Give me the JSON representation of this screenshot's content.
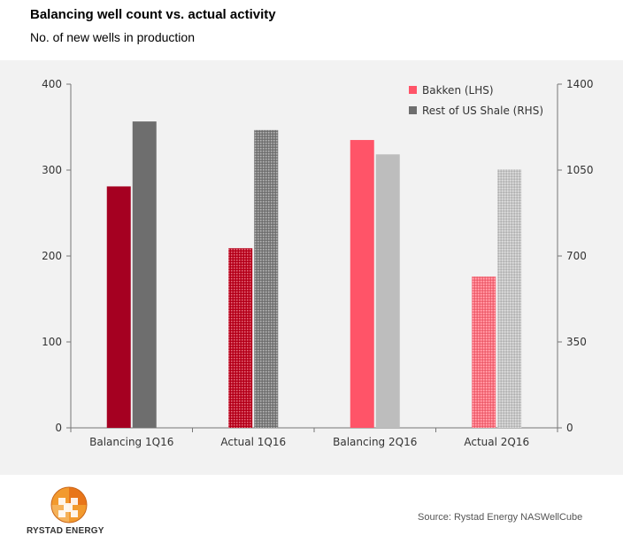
{
  "title": "Balancing well count vs. actual activity",
  "subtitle": "No. of new wells in production",
  "source": "Source: Rystad Energy NASWellCube",
  "logo": {
    "text": "RYSTAD ENERGY"
  },
  "chart_data": {
    "type": "bar",
    "categories": [
      "Balancing 1Q16",
      "Actual 1Q16",
      "Balancing 2Q16",
      "Actual 2Q16"
    ],
    "series": [
      {
        "name": "Bakken (LHS)",
        "axis": "left",
        "values": [
          281,
          209,
          335,
          176
        ],
        "colors": [
          "#a50021",
          "#c0001b",
          "#ff5468",
          "#ff6b7a"
        ],
        "patterned": [
          false,
          true,
          false,
          true
        ]
      },
      {
        "name": "Rest of US Shale (RHS)",
        "axis": "right",
        "values": [
          1248,
          1213,
          1114,
          1053
        ],
        "colors": [
          "#6e6e6e",
          "#7a7a7a",
          "#bdbdbd",
          "#c6c6c6"
        ],
        "patterned": [
          false,
          true,
          false,
          true
        ]
      }
    ],
    "y_left": {
      "min": 0,
      "max": 400,
      "ticks": [
        0,
        100,
        200,
        300,
        400
      ]
    },
    "y_right": {
      "min": 0,
      "max": 1400,
      "ticks": [
        0,
        350,
        700,
        1050,
        1400
      ]
    },
    "legend": [
      {
        "label": "Bakken (LHS)",
        "color": "#ff5468"
      },
      {
        "label": "Rest of US Shale (RHS)",
        "color": "#6e6e6e"
      }
    ],
    "legend_position": "top-right",
    "grid": false
  }
}
